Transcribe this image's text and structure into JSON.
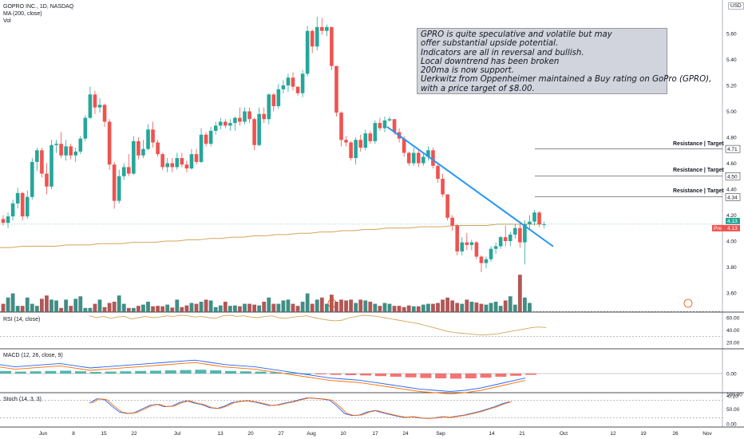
{
  "header": {
    "symbol_line": "GOPRO INC., 1D, NASDAQ",
    "ma_line": "MA (200, close)",
    "vol_line": "Vol",
    "currency": "USD"
  },
  "note": {
    "lines": [
      "GPRO is quite speculative and volatile but may",
      "offer substantial upside potential.",
      "Indicators are all in reversal and bullish.",
      "Local downtrend has been broken",
      "200ma is now support.",
      "Uerkwitz from Oppenheimer maintained a Buy rating on GoPro (GPRO),",
      "with a price target of $8.00."
    ]
  },
  "levels": [
    {
      "label": "Resistance | Target",
      "price": 4.71,
      "tag": "4.71"
    },
    {
      "label": "Resistance | Target",
      "price": 4.5,
      "tag": "4.50"
    },
    {
      "label": "Resistance | Target",
      "price": 4.34,
      "tag": "4.34"
    }
  ],
  "price_tags": {
    "last": "4.13",
    "pre_label": "Pre",
    "pre": "4.13"
  },
  "panels": {
    "rsi": {
      "label": "RSI (14, close)",
      "ticks": [
        "60.00",
        "40.00",
        "20.00"
      ]
    },
    "macd": {
      "label": "MACD (12, 26, close, 9)",
      "ticks": [
        "0.00",
        "-0.20"
      ]
    },
    "stoch": {
      "label": "Stoch (14, 3, 3)",
      "ticks": [
        "100.00",
        "50.00",
        "0.00"
      ]
    }
  },
  "colors": {
    "up": "#26a69a",
    "down": "#ef5350",
    "ma": "#d4a45a",
    "trendline": "#2196f3"
  },
  "chart_data": {
    "type": "candlestick",
    "price_axis_ticks": [
      "5.60",
      "5.40",
      "5.20",
      "5.00",
      "4.80",
      "4.60",
      "4.40",
      "4.20",
      "4.00",
      "3.80",
      "3.60"
    ],
    "x_ticks": [
      "Jun",
      "8",
      "15",
      "22",
      "Jul",
      "13",
      "20",
      "27",
      "Aug",
      "10",
      "17",
      "24",
      "Sep",
      "14",
      "21",
      "Oct",
      "12",
      "19",
      "26",
      "Nov"
    ],
    "ohlc": [
      [
        4.17,
        4.2,
        4.12,
        4.14
      ],
      [
        4.14,
        4.22,
        4.1,
        4.19
      ],
      [
        4.19,
        4.32,
        4.16,
        4.29
      ],
      [
        4.29,
        4.41,
        4.25,
        4.37
      ],
      [
        4.37,
        4.38,
        4.16,
        4.19
      ],
      [
        4.19,
        4.39,
        4.17,
        4.34
      ],
      [
        4.34,
        4.64,
        4.32,
        4.61
      ],
      [
        4.61,
        4.72,
        4.54,
        4.7
      ],
      [
        4.7,
        4.72,
        4.49,
        4.52
      ],
      [
        4.52,
        4.6,
        4.36,
        4.42
      ],
      [
        4.42,
        4.78,
        4.4,
        4.74
      ],
      [
        4.74,
        4.78,
        4.68,
        4.75
      ],
      [
        4.75,
        4.84,
        4.64,
        4.66
      ],
      [
        4.66,
        4.78,
        4.62,
        4.73
      ],
      [
        4.73,
        4.75,
        4.63,
        4.66
      ],
      [
        4.66,
        4.72,
        4.61,
        4.69
      ],
      [
        4.69,
        4.81,
        4.67,
        4.79
      ],
      [
        4.79,
        4.97,
        4.77,
        4.95
      ],
      [
        4.95,
        5.19,
        4.94,
        5.13
      ],
      [
        5.13,
        5.16,
        4.98,
        5.03
      ],
      [
        5.03,
        5.1,
        4.99,
        5.05
      ],
      [
        5.05,
        5.06,
        4.88,
        4.92
      ],
      [
        4.92,
        4.94,
        4.55,
        4.59
      ],
      [
        4.59,
        4.61,
        4.25,
        4.31
      ],
      [
        4.31,
        4.55,
        4.29,
        4.5
      ],
      [
        4.5,
        4.6,
        4.47,
        4.57
      ],
      [
        4.57,
        4.67,
        4.5,
        4.52
      ],
      [
        4.52,
        4.81,
        4.51,
        4.77
      ],
      [
        4.77,
        4.8,
        4.63,
        4.66
      ],
      [
        4.66,
        4.78,
        4.64,
        4.71
      ],
      [
        4.71,
        4.9,
        4.7,
        4.86
      ],
      [
        4.86,
        4.92,
        4.72,
        4.76
      ],
      [
        4.76,
        4.78,
        4.65,
        4.67
      ],
      [
        4.67,
        4.68,
        4.55,
        4.57
      ],
      [
        4.57,
        4.64,
        4.53,
        4.6
      ],
      [
        4.6,
        4.64,
        4.53,
        4.57
      ],
      [
        4.57,
        4.68,
        4.55,
        4.64
      ],
      [
        4.64,
        4.68,
        4.57,
        4.59
      ],
      [
        4.59,
        4.62,
        4.53,
        4.56
      ],
      [
        4.56,
        4.71,
        4.55,
        4.67
      ],
      [
        4.67,
        4.71,
        4.59,
        4.61
      ],
      [
        4.61,
        4.87,
        4.6,
        4.82
      ],
      [
        4.82,
        4.84,
        4.73,
        4.75
      ],
      [
        4.75,
        4.88,
        4.73,
        4.85
      ],
      [
        4.85,
        4.92,
        4.82,
        4.89
      ],
      [
        4.89,
        4.95,
        4.86,
        4.92
      ],
      [
        4.92,
        4.94,
        4.87,
        4.89
      ],
      [
        4.89,
        4.94,
        4.85,
        4.91
      ],
      [
        4.91,
        4.96,
        4.85,
        4.95
      ],
      [
        4.95,
        5.03,
        4.89,
        4.92
      ],
      [
        4.92,
        5.03,
        4.9,
        5.0
      ],
      [
        5.0,
        5.03,
        4.91,
        4.94
      ],
      [
        4.94,
        4.95,
        4.7,
        4.74
      ],
      [
        4.74,
        5.03,
        4.73,
        4.98
      ],
      [
        4.98,
        5.03,
        4.91,
        4.94
      ],
      [
        4.94,
        5.14,
        4.9,
        5.13
      ],
      [
        5.13,
        5.14,
        5.0,
        5.04
      ],
      [
        5.04,
        5.21,
        5.02,
        5.17
      ],
      [
        5.17,
        5.24,
        5.14,
        5.2
      ],
      [
        5.2,
        5.29,
        5.15,
        5.26
      ],
      [
        5.26,
        5.3,
        5.16,
        5.19
      ],
      [
        5.19,
        5.19,
        5.12,
        5.14
      ],
      [
        5.14,
        5.32,
        5.11,
        5.29
      ],
      [
        5.29,
        5.66,
        5.27,
        5.62
      ],
      [
        5.62,
        5.63,
        5.45,
        5.5
      ],
      [
        5.5,
        5.73,
        5.47,
        5.65
      ],
      [
        5.65,
        5.72,
        5.59,
        5.62
      ],
      [
        5.62,
        5.67,
        5.58,
        5.65
      ],
      [
        5.65,
        5.65,
        5.32,
        5.35
      ],
      [
        5.35,
        5.35,
        4.96,
        4.99
      ],
      [
        4.99,
        5.0,
        4.73,
        4.78
      ],
      [
        4.78,
        4.81,
        4.73,
        4.76
      ],
      [
        4.76,
        4.77,
        4.62,
        4.64
      ],
      [
        4.64,
        4.8,
        4.59,
        4.78
      ],
      [
        4.78,
        4.82,
        4.69,
        4.72
      ],
      [
        4.72,
        4.86,
        4.7,
        4.83
      ],
      [
        4.83,
        4.85,
        4.75,
        4.77
      ],
      [
        4.77,
        4.93,
        4.75,
        4.91
      ],
      [
        4.91,
        4.95,
        4.85,
        4.87
      ],
      [
        4.87,
        4.96,
        4.84,
        4.93
      ],
      [
        4.93,
        4.96,
        4.92,
        4.94
      ],
      [
        4.94,
        4.94,
        4.82,
        4.84
      ],
      [
        4.84,
        4.87,
        4.76,
        4.79
      ],
      [
        4.79,
        4.81,
        4.65,
        4.68
      ],
      [
        4.68,
        4.69,
        4.58,
        4.6
      ],
      [
        4.6,
        4.72,
        4.58,
        4.68
      ],
      [
        4.68,
        4.7,
        4.57,
        4.6
      ],
      [
        4.6,
        4.68,
        4.58,
        4.65
      ],
      [
        4.65,
        4.73,
        4.62,
        4.7
      ],
      [
        4.7,
        4.72,
        4.56,
        4.58
      ],
      [
        4.58,
        4.59,
        4.45,
        4.48
      ],
      [
        4.48,
        4.52,
        4.34,
        4.36
      ],
      [
        4.36,
        4.36,
        4.16,
        4.18
      ],
      [
        4.18,
        4.2,
        4.08,
        4.12
      ],
      [
        4.12,
        4.13,
        3.89,
        3.92
      ],
      [
        3.92,
        4.03,
        3.89,
        3.99
      ],
      [
        3.99,
        4.06,
        3.93,
        3.97
      ],
      [
        3.97,
        4.01,
        3.93,
        3.99
      ],
      [
        3.99,
        4.0,
        3.86,
        3.88
      ],
      [
        3.88,
        3.89,
        3.76,
        3.83
      ],
      [
        3.83,
        3.88,
        3.79,
        3.86
      ],
      [
        3.86,
        3.96,
        3.84,
        3.94
      ],
      [
        3.94,
        3.99,
        3.9,
        3.96
      ],
      [
        3.96,
        4.04,
        3.94,
        4.03
      ],
      [
        4.03,
        4.12,
        3.96,
        4.0
      ],
      [
        4.0,
        4.07,
        3.96,
        4.05
      ],
      [
        4.05,
        4.13,
        4.02,
        4.1
      ],
      [
        4.1,
        4.14,
        3.95,
        3.99
      ],
      [
        3.99,
        4.16,
        3.82,
        4.13
      ],
      [
        4.13,
        4.2,
        4.09,
        4.15
      ],
      [
        4.15,
        4.24,
        4.12,
        4.22
      ],
      [
        4.22,
        4.23,
        4.11,
        4.13
      ],
      [
        4.13,
        4.15,
        4.1,
        4.13
      ]
    ],
    "volume_scale_note": "relative",
    "volume": [
      20,
      35,
      45,
      15,
      15,
      35,
      20,
      15,
      32,
      40,
      30,
      28,
      10,
      30,
      15,
      32,
      38,
      10,
      10,
      20,
      30,
      12,
      22,
      25,
      40,
      20,
      10,
      10,
      15,
      18,
      25,
      14,
      15,
      14,
      18,
      11,
      30,
      12,
      16,
      22,
      20,
      25,
      30,
      28,
      12,
      16,
      25,
      15,
      16,
      14,
      20,
      20,
      18,
      16,
      25,
      35,
      20,
      20,
      28,
      30,
      20,
      15,
      25,
      45,
      20,
      30,
      35,
      20,
      42,
      25,
      30,
      28,
      30,
      22,
      30,
      28,
      25,
      20,
      15,
      22,
      20,
      15,
      15,
      12,
      16,
      14,
      14,
      18,
      20,
      20,
      22,
      30,
      35,
      28,
      22,
      20,
      30,
      25,
      23,
      20,
      18,
      22,
      25,
      15,
      28,
      38,
      18,
      90,
      35,
      22
    ],
    "ma200": [
      3.95,
      3.95,
      3.96,
      3.96,
      3.96,
      3.96,
      3.97,
      3.97,
      3.97,
      3.98,
      3.98,
      3.98,
      3.99,
      3.99,
      3.99,
      4.0,
      4.0,
      4.01,
      4.01,
      4.02,
      4.02,
      4.03,
      4.03,
      4.04,
      4.04,
      4.05,
      4.05,
      4.06,
      4.06,
      4.07,
      4.07,
      4.08,
      4.08,
      4.09,
      4.09,
      4.1,
      4.1,
      4.1,
      4.11,
      4.11,
      4.11,
      4.12,
      4.12,
      4.12,
      4.12,
      4.13,
      4.13,
      4.13,
      4.13,
      4.13
    ],
    "trendline": {
      "from": [
        4.88,
        "Aug 17"
      ],
      "to": [
        4.02,
        "Sep 25"
      ]
    },
    "rsi": [
      63,
      60,
      62,
      59,
      61,
      62,
      58,
      60,
      62,
      60,
      61,
      63,
      62,
      64,
      63,
      61,
      62,
      60,
      59,
      63,
      64,
      62,
      63,
      61,
      60,
      62,
      63,
      60,
      59,
      61,
      62,
      63,
      60,
      58,
      56,
      55,
      56,
      60,
      62,
      64,
      63,
      62,
      60,
      58,
      56,
      54,
      52,
      50,
      47,
      44,
      41,
      38,
      36,
      35,
      34,
      33,
      32,
      33,
      34,
      36,
      38,
      40,
      42,
      44,
      45,
      44
    ],
    "macd": [
      0.08,
      0.06,
      0.07,
      0.08,
      0.09,
      0.07,
      0.05,
      0.06,
      0.07,
      0.08,
      0.09,
      0.1,
      0.11,
      0.12,
      0.1,
      0.08,
      0.07,
      0.06,
      0.04,
      0.02,
      0.0,
      -0.02,
      -0.04,
      -0.05,
      -0.06,
      -0.08,
      -0.1,
      -0.12,
      -0.14,
      -0.15,
      -0.16,
      -0.15,
      -0.13,
      -0.1,
      -0.07,
      -0.04
    ],
    "stoch": [
      70,
      85,
      82,
      60,
      40,
      35,
      38,
      50,
      62,
      66,
      58,
      60,
      72,
      78,
      70,
      65,
      55,
      52,
      60,
      72,
      76,
      78,
      74,
      68,
      62,
      64,
      70,
      75,
      82,
      88,
      86,
      84,
      80,
      60,
      35,
      28,
      30,
      40,
      45,
      38,
      32,
      26,
      22,
      24,
      20,
      18,
      20,
      24,
      22,
      26,
      30,
      36,
      42,
      50,
      58,
      68,
      75
    ]
  }
}
